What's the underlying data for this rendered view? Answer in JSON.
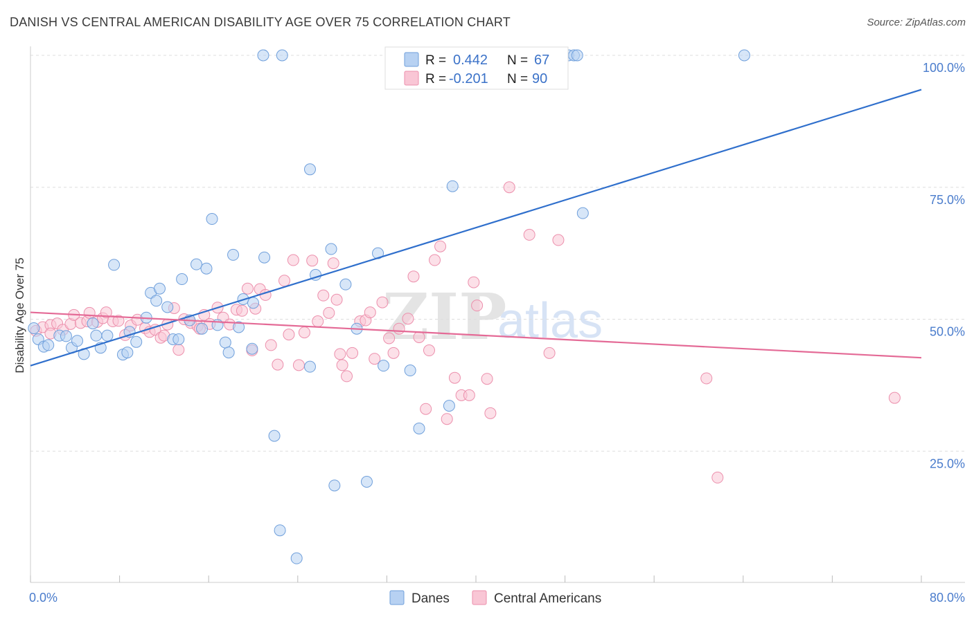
{
  "title": "DANISH VS CENTRAL AMERICAN DISABILITY AGE OVER 75 CORRELATION CHART",
  "source": "Source: ZipAtlas.com",
  "watermark": {
    "part1": "ZIP",
    "part2": "atlas"
  },
  "legend": {
    "r_label": "R =",
    "n_label": "N =",
    "rows": [
      {
        "r": "0.442",
        "n": "67",
        "color": "#9dc0ec"
      },
      {
        "r": "-0.201",
        "n": "90",
        "color": "#f5b3c8"
      }
    ]
  },
  "bottom_legend": [
    "Danes",
    "Central Americans"
  ],
  "colors": {
    "danes_fill": "#b7d1f2",
    "danes_stroke": "#6f9fdb",
    "danes_line": "#2f6fcc",
    "ca_fill": "#f9c6d5",
    "ca_stroke": "#ec8fac",
    "ca_line": "#e46a96",
    "tick_text": "#4a7ccc"
  },
  "chart_data": {
    "type": "scatter",
    "title": "DANISH VS CENTRAL AMERICAN DISABILITY AGE OVER 75 CORRELATION CHART",
    "xlabel": "",
    "ylabel": "Disability Age Over 75",
    "xlim": [
      0,
      80
    ],
    "ylim": [
      0,
      100
    ],
    "x_tick_labels": [
      "0.0%",
      "80.0%"
    ],
    "y_tick_labels": [
      "100.0%",
      "75.0%",
      "50.0%",
      "25.0%"
    ],
    "y_tick_values": [
      100,
      75,
      50,
      25
    ],
    "grid": true,
    "series": [
      {
        "name": "Danes",
        "trend": {
          "x": [
            0,
            80
          ],
          "y": [
            41.2,
            93.5
          ]
        },
        "points": [
          [
            0.3,
            48.3
          ],
          [
            0.7,
            46.2
          ],
          [
            1.2,
            44.8
          ],
          [
            1.6,
            45.1
          ],
          [
            2.6,
            46.9
          ],
          [
            3.2,
            46.8
          ],
          [
            3.7,
            44.6
          ],
          [
            4.2,
            45.9
          ],
          [
            4.8,
            43.4
          ],
          [
            5.6,
            49.2
          ],
          [
            5.9,
            46.9
          ],
          [
            6.3,
            44.6
          ],
          [
            6.9,
            46.9
          ],
          [
            7.5,
            60.3
          ],
          [
            8.3,
            43.3
          ],
          [
            8.7,
            43.7
          ],
          [
            8.9,
            47.6
          ],
          [
            9.5,
            45.7
          ],
          [
            10.4,
            50.3
          ],
          [
            10.8,
            55.0
          ],
          [
            11.3,
            53.5
          ],
          [
            11.6,
            55.8
          ],
          [
            12.3,
            52.3
          ],
          [
            12.8,
            46.2
          ],
          [
            13.3,
            46.2
          ],
          [
            13.6,
            57.6
          ],
          [
            14.3,
            49.8
          ],
          [
            14.9,
            60.4
          ],
          [
            15.4,
            48.2
          ],
          [
            15.8,
            59.6
          ],
          [
            16.3,
            69.0
          ],
          [
            16.8,
            48.9
          ],
          [
            17.5,
            45.6
          ],
          [
            17.8,
            43.7
          ],
          [
            18.2,
            62.2
          ],
          [
            18.7,
            48.5
          ],
          [
            19.1,
            53.8
          ],
          [
            19.9,
            44.4
          ],
          [
            20.0,
            53.1
          ],
          [
            20.9,
            100.0
          ],
          [
            21.0,
            61.7
          ],
          [
            21.9,
            27.9
          ],
          [
            22.4,
            10.0
          ],
          [
            22.6,
            100.0
          ],
          [
            23.9,
            4.7
          ],
          [
            25.1,
            41.0
          ],
          [
            25.6,
            58.4
          ],
          [
            25.1,
            78.4
          ],
          [
            27.0,
            63.3
          ],
          [
            27.3,
            18.5
          ],
          [
            28.3,
            56.6
          ],
          [
            29.3,
            48.2
          ],
          [
            30.2,
            19.2
          ],
          [
            31.2,
            62.5
          ],
          [
            31.7,
            41.2
          ],
          [
            34.1,
            40.3
          ],
          [
            34.9,
            29.3
          ],
          [
            37.6,
            33.6
          ],
          [
            37.9,
            75.2
          ],
          [
            39.0,
            100.0
          ],
          [
            40.3,
            100.0
          ],
          [
            41.4,
            100.0
          ],
          [
            48.3,
            100.0
          ],
          [
            48.8,
            100.0
          ],
          [
            49.1,
            100.0
          ],
          [
            49.6,
            70.1
          ],
          [
            64.1,
            100.0
          ]
        ]
      },
      {
        "name": "Central Americans",
        "trend": {
          "x": [
            0,
            80
          ],
          "y": [
            51.3,
            42.7
          ]
        },
        "points": [
          [
            0.5,
            47.8
          ],
          [
            1.1,
            48.5
          ],
          [
            1.8,
            48.9
          ],
          [
            2.4,
            49.2
          ],
          [
            2.9,
            48.0
          ],
          [
            3.6,
            49.1
          ],
          [
            3.9,
            50.8
          ],
          [
            4.5,
            49.3
          ],
          [
            5.1,
            49.6
          ],
          [
            5.3,
            51.2
          ],
          [
            6.0,
            49.5
          ],
          [
            6.5,
            50.2
          ],
          [
            6.8,
            51.3
          ],
          [
            7.4,
            49.6
          ],
          [
            7.9,
            49.7
          ],
          [
            8.5,
            47.0
          ],
          [
            9.0,
            48.8
          ],
          [
            9.6,
            49.9
          ],
          [
            10.3,
            48.3
          ],
          [
            10.7,
            47.6
          ],
          [
            11.2,
            48.0
          ],
          [
            11.7,
            46.5
          ],
          [
            12.3,
            49.0
          ],
          [
            12.9,
            52.1
          ],
          [
            13.3,
            44.2
          ],
          [
            13.8,
            50.0
          ],
          [
            14.4,
            49.3
          ],
          [
            15.0,
            48.7
          ],
          [
            15.6,
            50.8
          ],
          [
            16.1,
            49.1
          ],
          [
            16.8,
            52.2
          ],
          [
            17.3,
            50.3
          ],
          [
            17.9,
            49.0
          ],
          [
            18.5,
            51.8
          ],
          [
            19.0,
            51.6
          ],
          [
            19.5,
            55.8
          ],
          [
            19.9,
            44.1
          ],
          [
            20.2,
            52.0
          ],
          [
            20.6,
            55.7
          ],
          [
            21.1,
            54.6
          ],
          [
            21.6,
            45.1
          ],
          [
            22.2,
            41.4
          ],
          [
            22.8,
            57.3
          ],
          [
            23.2,
            47.1
          ],
          [
            23.6,
            61.2
          ],
          [
            24.1,
            41.3
          ],
          [
            24.6,
            47.5
          ],
          [
            25.3,
            61.1
          ],
          [
            25.8,
            49.6
          ],
          [
            26.3,
            54.5
          ],
          [
            26.8,
            51.2
          ],
          [
            27.2,
            60.6
          ],
          [
            27.5,
            53.7
          ],
          [
            28.0,
            41.3
          ],
          [
            28.4,
            39.2
          ],
          [
            28.9,
            43.6
          ],
          [
            29.6,
            49.6
          ],
          [
            30.1,
            49.8
          ],
          [
            30.5,
            51.3
          ],
          [
            30.9,
            42.5
          ],
          [
            31.6,
            53.2
          ],
          [
            32.2,
            46.4
          ],
          [
            32.6,
            43.6
          ],
          [
            33.1,
            48.2
          ],
          [
            33.9,
            50.1
          ],
          [
            34.4,
            58.1
          ],
          [
            34.9,
            46.6
          ],
          [
            35.5,
            33.0
          ],
          [
            35.8,
            44.1
          ],
          [
            36.3,
            61.2
          ],
          [
            36.8,
            63.8
          ],
          [
            37.4,
            31.1
          ],
          [
            38.1,
            38.9
          ],
          [
            38.7,
            35.6
          ],
          [
            39.4,
            35.6
          ],
          [
            39.8,
            57.0
          ],
          [
            40.1,
            52.6
          ],
          [
            41.0,
            38.7
          ],
          [
            41.3,
            32.2
          ],
          [
            43.0,
            75.0
          ],
          [
            44.8,
            66.0
          ],
          [
            46.6,
            43.6
          ],
          [
            47.4,
            65.0
          ],
          [
            60.7,
            38.8
          ],
          [
            61.7,
            20.0
          ],
          [
            77.6,
            35.1
          ],
          [
            1.8,
            47.3
          ],
          [
            12.0,
            46.9
          ],
          [
            15.2,
            48.2
          ],
          [
            27.8,
            43.4
          ]
        ]
      }
    ]
  }
}
